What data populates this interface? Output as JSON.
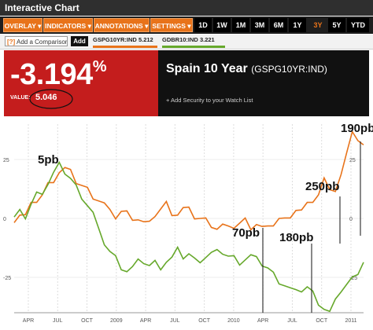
{
  "window": {
    "title": "Interactive Chart"
  },
  "toolbar": {
    "menus": [
      "OVERLAY ▾",
      "INDICATORS ▾",
      "ANNOTATIONS ▾",
      "SETTINGS ▾"
    ],
    "ranges": [
      "1D",
      "1W",
      "1M",
      "3M",
      "6M",
      "1Y",
      "3Y",
      "5Y",
      "YTD"
    ],
    "active_range": "3Y"
  },
  "comparison": {
    "placeholder": "Add a Comparison",
    "add_label": "Add",
    "series1": {
      "ticker": "GSPG10YR:IND",
      "value": "5.212",
      "color": "#e8731a"
    },
    "series2": {
      "ticker": "GDBR10:IND",
      "value": "3.221",
      "color": "#66a82b"
    }
  },
  "quote": {
    "change": "-3.194",
    "pct": "%",
    "value_label": "VALUE:",
    "value": "5.046",
    "name": "Spain 10 Year",
    "ticker": "(GSPG10YR:IND)",
    "watch": "+ Add Security to your Watch List"
  },
  "chart_data": {
    "type": "line",
    "x_labels": [
      "APR",
      "JUL",
      "OCT",
      "2009",
      "APR",
      "JUL",
      "OCT",
      "2010",
      "APR",
      "JUL",
      "OCT",
      "2011"
    ],
    "right_axis_labels": [
      "25",
      "0",
      "-25"
    ],
    "left_axis_labels": [
      "25",
      "0",
      "-25"
    ],
    "annotations": [
      "5pb",
      "70pb",
      "180pb",
      "250pb",
      "190pb"
    ],
    "ylim": [
      -40,
      40
    ],
    "series": [
      {
        "name": "GSPG10YR:IND",
        "color": "#e8731a",
        "values": [
          0,
          2,
          1,
          5,
          8,
          10,
          14,
          17,
          20,
          21,
          19,
          16,
          14,
          12,
          10,
          8,
          6,
          2,
          1,
          3,
          2,
          1,
          0,
          -2,
          -3,
          2,
          4,
          6,
          3,
          2,
          4,
          3,
          1,
          0,
          -1,
          -2,
          -4,
          -3,
          -5,
          -3,
          -2,
          -1,
          -3,
          -2,
          -4,
          -5,
          -2,
          0,
          -1,
          2,
          4,
          3,
          5,
          8,
          10,
          16,
          14,
          12,
          18,
          26,
          38,
          33,
          30
        ]
      },
      {
        "name": "GDBR10:IND",
        "color": "#66a82b",
        "values": [
          0,
          2,
          1,
          6,
          10,
          12,
          15,
          19,
          22,
          20,
          17,
          13,
          10,
          6,
          2,
          -6,
          -10,
          -14,
          -17,
          -20,
          -22,
          -21,
          -19,
          -18,
          -20,
          -19,
          -20,
          -18,
          -17,
          -14,
          -16,
          -15,
          -18,
          -17,
          -16,
          -15,
          -15,
          -14,
          -16,
          -17,
          -18,
          -17,
          -16,
          -18,
          -19,
          -21,
          -24,
          -26,
          -28,
          -30,
          -32,
          -30,
          -29,
          -32,
          -35,
          -38,
          -40,
          -36,
          -30,
          -28,
          -26,
          -22,
          -18
        ]
      }
    ]
  }
}
